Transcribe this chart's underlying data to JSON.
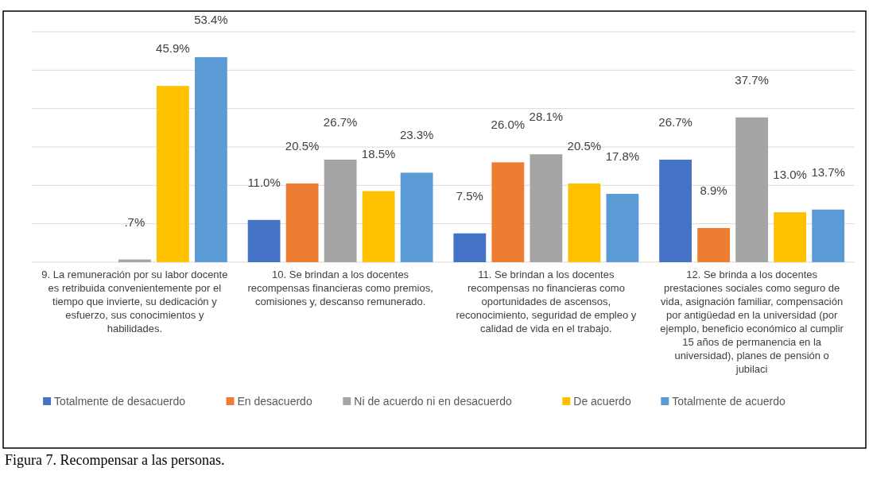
{
  "chart_data": {
    "type": "bar",
    "title": "Figura 7. Recompensar a las personas.",
    "categories": [
      "9. La remuneración por su labor docente es retribuida convenientemente por el tiempo que invierte, su dedicación y esfuerzo, sus conocimientos y habilidades.",
      "10. Se brindan a los docentes recompensas financieras como premios, comisiones y, descanso remunerado.",
      "11. Se brindan a los docentes recompensas no financieras como oportunidades de ascensos, reconocimiento, seguridad de empleo y calidad de vida en el trabajo.",
      "12. Se brinda a los docentes prestaciones sociales como seguro de vida, asignación familiar, compensación por antigüedad en la universidad (por ejemplo, beneficio económico al cumplir 15 años de permanencia en la universidad), planes de pensión o jubilaci"
    ],
    "series": [
      {
        "name": "Totalmente de desacuerdo",
        "color": "#4472c4",
        "values": [
          null,
          11.0,
          7.5,
          26.7
        ],
        "value_labels": [
          null,
          "11.0%",
          "7.5%",
          "26.7%"
        ]
      },
      {
        "name": "En desacuerdo",
        "color": "#ed7d31",
        "values": [
          null,
          20.5,
          26.0,
          8.9
        ],
        "value_labels": [
          null,
          "20.5%",
          "26.0%",
          "8.9%"
        ]
      },
      {
        "name": "Ni de acuerdo ni en desacuerdo",
        "color": "#a5a5a5",
        "values": [
          0.7,
          26.7,
          28.1,
          37.7
        ],
        "value_labels": [
          ".7%",
          "26.7%",
          "28.1%",
          "37.7%"
        ]
      },
      {
        "name": "De acuerdo",
        "color": "#ffc000",
        "values": [
          45.9,
          18.5,
          20.5,
          13.0
        ],
        "value_labels": [
          "45.9%",
          "18.5%",
          "20.5%",
          "13.0%"
        ]
      },
      {
        "name": "Totalmente de acuerdo",
        "color": "#5b9bd5",
        "values": [
          53.4,
          23.3,
          17.8,
          13.7
        ],
        "value_labels": [
          "53.4%",
          "23.3%",
          "17.8%",
          "13.7%"
        ]
      }
    ],
    "ylim": [
      0,
      60
    ],
    "yticks": [
      {
        "value": 0,
        "label": null
      },
      {
        "value": 10,
        "label": null
      },
      {
        "value": 20,
        "label": null
      },
      {
        "value": 30,
        "label": null
      },
      {
        "value": 40,
        "label": null
      },
      {
        "value": 50,
        "label": null
      },
      {
        "value": 60,
        "label": null
      }
    ],
    "tick_labels": "x",
    "grid": "y",
    "legend": "bottom"
  }
}
